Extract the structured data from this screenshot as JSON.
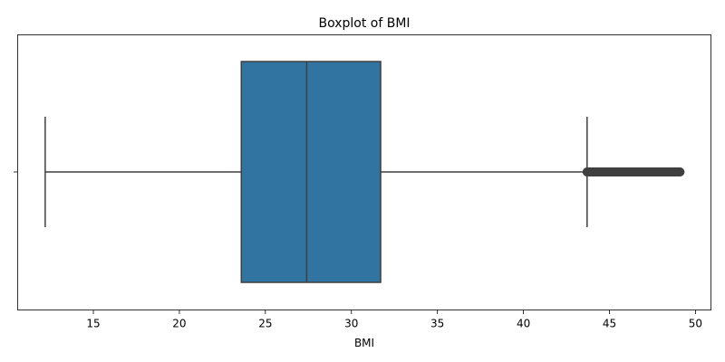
{
  "chart_data": {
    "type": "boxplot",
    "title": "Boxplot of BMI",
    "xlabel": "BMI",
    "ylabel": "",
    "orientation": "horizontal",
    "xlim": [
      10.6,
      50.9
    ],
    "xticks": [
      15,
      20,
      25,
      30,
      35,
      40,
      45,
      50
    ],
    "grid": false,
    "box": {
      "whisker_low": 12.2,
      "q1": 23.6,
      "median": 27.4,
      "q3": 31.7,
      "whisker_high": 43.7,
      "outliers_range": [
        43.7,
        49.1
      ],
      "fill_color": "#3274a1",
      "edge_color": "#3f3f3f"
    }
  }
}
